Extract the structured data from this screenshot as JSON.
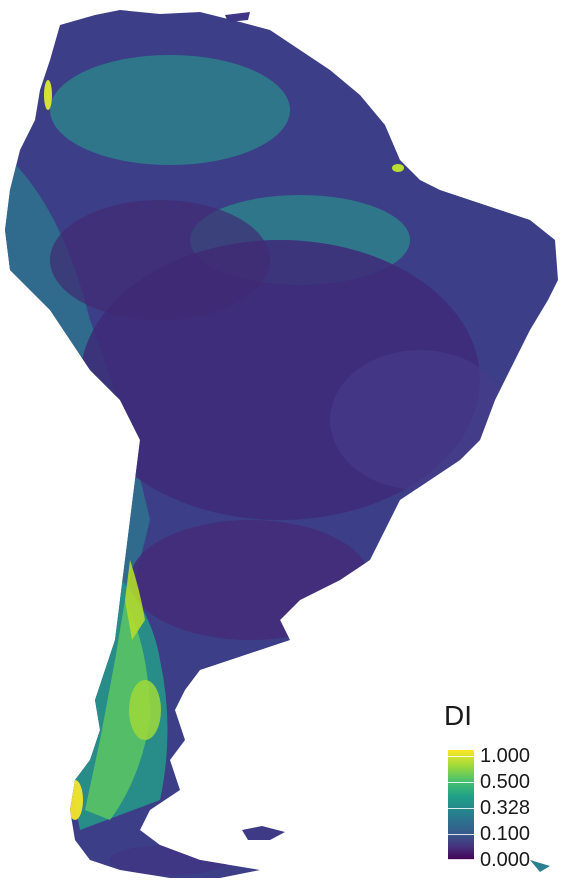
{
  "legend": {
    "title": "DI",
    "ticks": [
      "1.000",
      "0.500",
      "0.328",
      "0.100",
      "0.000"
    ]
  },
  "colors": {
    "low": "#440154",
    "low_mid": "#3b528b",
    "mid": "#21908d",
    "high_mid": "#5dc863",
    "high": "#fde725"
  }
}
